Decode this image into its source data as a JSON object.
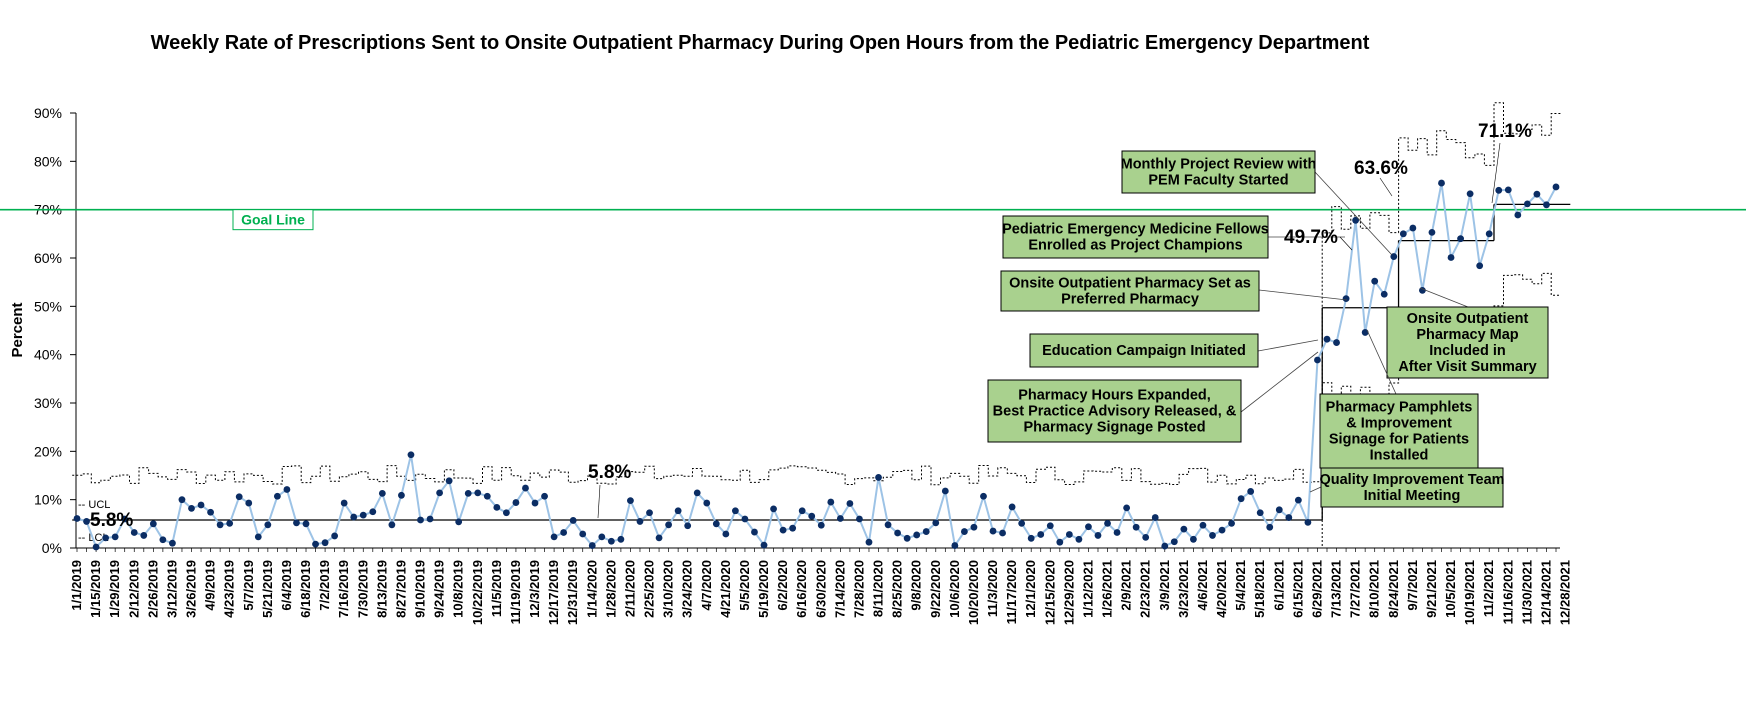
{
  "chart_data": {
    "type": "line",
    "title": "Weekly Rate of Prescriptions Sent to Onsite Outpatient Pharmacy During Open Hours from the Pediatric Emergency Department",
    "ylabel": "Percent",
    "xlabel": "",
    "ylim": [
      0,
      90
    ],
    "y_ticks": [
      "0%",
      "10%",
      "20%",
      "30%",
      "40%",
      "50%",
      "60%",
      "70%",
      "80%",
      "90%"
    ],
    "x_tick_labels": [
      "1/1/2019",
      "1/15/2019",
      "1/29/2019",
      "2/12/2019",
      "2/26/2019",
      "3/12/2019",
      "3/26/2019",
      "4/9/2019",
      "4/23/2019",
      "5/7/2019",
      "5/21/2019",
      "6/4/2019",
      "6/18/2019",
      "7/2/2019",
      "7/16/2019",
      "7/30/2019",
      "8/13/2019",
      "8/27/2019",
      "9/10/2019",
      "9/24/2019",
      "10/8/2019",
      "10/22/2019",
      "11/5/2019",
      "11/19/2019",
      "12/3/2019",
      "12/17/2019",
      "12/31/2019",
      "1/14/2020",
      "1/28/2020",
      "2/11/2020",
      "2/25/2020",
      "3/10/2020",
      "3/24/2020",
      "4/7/2020",
      "4/21/2020",
      "5/5/2020",
      "5/19/2020",
      "6/2/2020",
      "6/16/2020",
      "6/30/2020",
      "7/14/2020",
      "7/28/2020",
      "8/11/2020",
      "8/25/2020",
      "9/8/2020",
      "9/22/2020",
      "10/6/2020",
      "10/20/2020",
      "11/3/2020",
      "11/17/2020",
      "12/1/2020",
      "12/15/2020",
      "12/29/2020",
      "1/12/2021",
      "1/26/2021",
      "2/9/2021",
      "2/23/2021",
      "3/9/2021",
      "3/23/2021",
      "4/6/2021",
      "4/20/2021",
      "5/4/2021",
      "5/18/2021",
      "6/1/2021",
      "6/15/2021",
      "6/29/2021",
      "7/13/2021",
      "7/27/2021",
      "8/10/2021",
      "8/24/2021",
      "9/7/2021",
      "9/21/2021",
      "10/5/2021",
      "10/19/2021",
      "11/2/2021",
      "11/16/2021",
      "11/30/2021",
      "12/14/2021",
      "12/28/2021"
    ],
    "series": [
      {
        "name": "",
        "color": "#9dc3e6",
        "marker_color": "#0b2d64",
        "values": [
          6.1,
          5.5,
          0.2,
          2.1,
          2.3,
          6,
          3.2,
          2.6,
          5,
          1.7,
          1,
          10,
          8.2,
          8.9,
          7.4,
          4.8,
          5.1,
          10.6,
          9.3,
          2.3,
          4.8,
          10.7,
          12.1,
          5.2,
          5,
          0.8,
          1.1,
          2.5,
          9.3,
          6.4,
          6.8,
          7.5,
          11.3,
          4.8,
          10.9,
          19.3,
          5.8,
          6,
          11.4,
          13.9,
          5.4,
          11.3,
          11.4,
          10.7,
          8.4,
          7.3,
          9.4,
          12.4,
          9.3,
          10.7,
          2.3,
          3.2,
          5.7,
          2.9,
          0.5,
          2.3,
          1.4,
          1.8,
          9.8,
          5.5,
          7.3,
          2.1,
          4.8,
          7.7,
          4.6,
          11.4,
          9.3,
          5,
          2.9,
          7.7,
          6,
          3.3,
          0.6,
          8.1,
          3.7,
          4.1,
          7.7,
          6.6,
          4.7,
          9.5,
          6.1,
          9.2,
          6,
          1.2,
          14.6,
          4.8,
          3.1,
          2,
          2.7,
          3.4,
          5.2,
          11.8,
          0.5,
          3.4,
          4.3,
          10.7,
          3.5,
          3.1,
          8.5,
          5.1,
          2,
          2.8,
          4.6,
          1.2,
          2.8,
          1.8,
          4.4,
          2.6,
          5.1,
          3.2,
          8.3,
          4.3,
          2.2,
          6.3,
          0.4,
          1.3,
          3.9,
          1.8,
          4.7,
          2.6,
          3.7,
          5.1,
          10.2,
          11.7,
          7.3,
          4.3,
          7.9,
          6.3,
          9.9,
          5.3,
          38.9,
          43.2,
          42.5,
          51.6,
          67.8,
          44.6,
          55.2,
          52.5,
          60.3,
          65,
          66.2,
          53.3,
          65.3,
          75.5,
          60.1,
          64,
          73.3,
          58.4,
          65,
          74,
          74.1,
          68.9,
          71.2,
          73.2,
          71,
          74.7
        ]
      },
      {
        "name": "",
        "type": "center",
        "segments": [
          {
            "start": 0,
            "end": 130,
            "value": 5.8
          },
          {
            "start": 131,
            "end": 138,
            "value": 49.7
          },
          {
            "start": 139,
            "end": 148,
            "value": 63.6
          },
          {
            "start": 149,
            "end": 156,
            "value": 71.1
          }
        ]
      }
    ],
    "center_line_labels": [
      "5.8%",
      "5.8%",
      "49.7%",
      "63.6%",
      "71.1%"
    ],
    "limit_labels": {
      "ucl": "UCL",
      "lcl": "LCL"
    },
    "goal": {
      "value": 70,
      "label": "Goal Line",
      "color": "#00b050"
    },
    "annotations": [
      {
        "lines": [
          "Monthly Project Review with",
          "PEM Faculty Started"
        ]
      },
      {
        "lines": [
          "Pediatric Emergency Medicine Fellows",
          "Enrolled as Project Champions"
        ]
      },
      {
        "lines": [
          "Onsite Outpatient Pharmacy Set as",
          "Preferred Pharmacy"
        ]
      },
      {
        "lines": [
          "Education Campaign Initiated"
        ]
      },
      {
        "lines": [
          "Pharmacy Hours Expanded,",
          "Best Practice Advisory Released, &",
          "Pharmacy Signage Posted"
        ]
      },
      {
        "lines": [
          "Onsite Outpatient",
          "Pharmacy Map",
          "Included in",
          "After Visit Summary"
        ]
      },
      {
        "lines": [
          "Pharmacy Pamphlets",
          "& Improvement",
          "Signage for Patients",
          "Installed"
        ]
      },
      {
        "lines": [
          "Quality Improvement Team",
          "Initial Meeting"
        ]
      }
    ],
    "grid": false,
    "legend": "none",
    "colors": {
      "line": "#9dc3e6",
      "marker": "#0b2d64",
      "goal": "#00b050",
      "annotation_fill": "#a9d18e"
    }
  }
}
